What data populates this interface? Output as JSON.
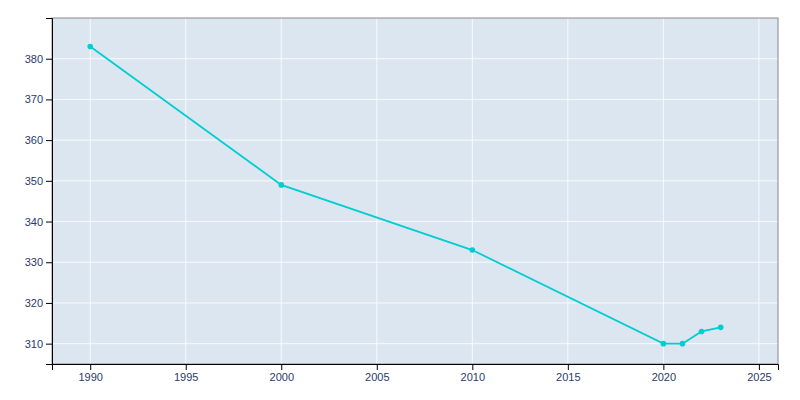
{
  "chart_data": {
    "type": "line",
    "x": [
      1990,
      2000,
      2010,
      2020,
      2021,
      2022,
      2023
    ],
    "values": [
      383,
      349,
      333,
      310,
      310,
      313,
      314
    ],
    "color": "#00CED1",
    "marker": "circle",
    "xlim": [
      1988,
      2026
    ],
    "ylim": [
      305,
      390
    ],
    "xticks": [
      1990,
      1995,
      2000,
      2005,
      2010,
      2015,
      2020,
      2025
    ],
    "yticks": [
      310,
      320,
      330,
      340,
      350,
      360,
      370,
      380
    ],
    "grid": true
  }
}
